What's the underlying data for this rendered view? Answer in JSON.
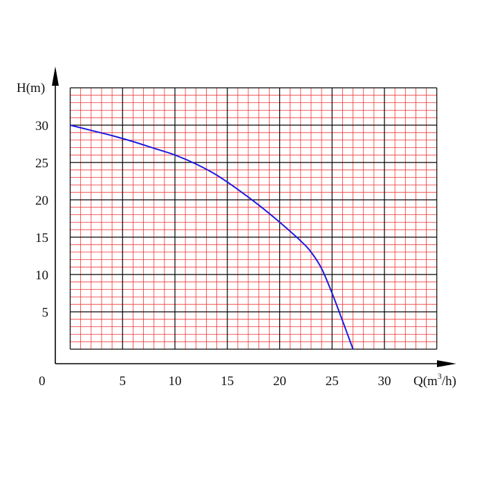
{
  "chart_data": {
    "type": "line",
    "title": "",
    "xlabel": "Q(m³/h)",
    "ylabel": "H(m)",
    "origin_label": "0",
    "xlim": [
      -1.5,
      35
    ],
    "ylim": [
      -2,
      36
    ],
    "x_ticks": [
      5,
      10,
      15,
      20,
      25,
      30
    ],
    "y_ticks": [
      5,
      10,
      15,
      20,
      25,
      30
    ],
    "grid": {
      "on": true,
      "major_color": "#000000",
      "minor_color": "#f03030",
      "x_range": [
        0,
        35
      ],
      "y_range": [
        0,
        35
      ],
      "minor_step": 1,
      "major_step": 5
    },
    "series": [
      {
        "color": "#1a1adf",
        "points": [
          [
            0,
            30.0
          ],
          [
            2,
            29.3
          ],
          [
            4,
            28.6
          ],
          [
            6,
            27.8
          ],
          [
            8,
            26.9
          ],
          [
            10,
            26.0
          ],
          [
            12,
            24.8
          ],
          [
            14,
            23.3
          ],
          [
            16,
            21.4
          ],
          [
            18,
            19.3
          ],
          [
            20,
            17.0
          ],
          [
            22,
            14.5
          ],
          [
            23,
            13.0
          ],
          [
            24,
            10.8
          ],
          [
            25,
            7.5
          ],
          [
            26,
            3.8
          ],
          [
            27,
            0.0
          ]
        ]
      }
    ]
  }
}
